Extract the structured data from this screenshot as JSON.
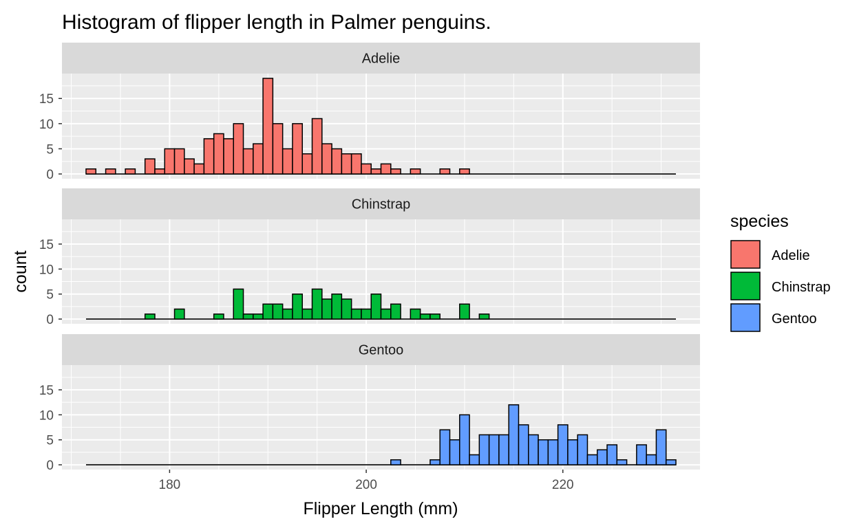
{
  "chart_data": {
    "type": "bar",
    "title": "Histogram of flipper length in Palmer penguins.",
    "xlabel": "Flipper Length (mm)",
    "ylabel": "count",
    "xlim": [
      169.05,
      233.95
    ],
    "ylim": [
      -0.95,
      19.95
    ],
    "x_ticks": [
      180,
      200,
      220
    ],
    "y_ticks": [
      0,
      5,
      10,
      15
    ],
    "bin_width": 1,
    "x_range": [
      172,
      231
    ],
    "grid": true,
    "legend": {
      "title": "species",
      "position": "right"
    },
    "series": [
      {
        "name": "Adelie",
        "color": "#F8766D",
        "x": [
          172,
          174,
          176,
          178,
          179,
          180,
          181,
          182,
          183,
          184,
          185,
          186,
          187,
          188,
          189,
          190,
          191,
          192,
          193,
          194,
          195,
          196,
          197,
          198,
          199,
          200,
          201,
          202,
          203,
          205,
          208,
          210
        ],
        "values": [
          1,
          1,
          1,
          3,
          1,
          5,
          5,
          3,
          2,
          7,
          8,
          7,
          10,
          5,
          6,
          19,
          10,
          5,
          10,
          4,
          11,
          6,
          5,
          4,
          4,
          2,
          1,
          2,
          1,
          1,
          1,
          1
        ]
      },
      {
        "name": "Chinstrap",
        "color": "#00BA38",
        "x": [
          178,
          181,
          185,
          187,
          188,
          189,
          190,
          191,
          192,
          193,
          194,
          195,
          196,
          197,
          198,
          199,
          200,
          201,
          202,
          203,
          205,
          206,
          207,
          210,
          212
        ],
        "values": [
          1,
          2,
          1,
          6,
          1,
          1,
          3,
          3,
          2,
          5,
          2,
          6,
          4,
          5,
          4,
          2,
          2,
          5,
          2,
          3,
          2,
          1,
          1,
          3,
          1
        ]
      },
      {
        "name": "Gentoo",
        "color": "#619CFF",
        "x": [
          203,
          207,
          208,
          209,
          210,
          211,
          212,
          213,
          214,
          215,
          216,
          217,
          218,
          219,
          220,
          221,
          222,
          223,
          224,
          225,
          226,
          228,
          229,
          230,
          231
        ],
        "values": [
          1,
          1,
          7,
          5,
          10,
          2,
          6,
          6,
          6,
          12,
          8,
          6,
          5,
          5,
          8,
          5,
          6,
          2,
          3,
          4,
          1,
          4,
          2,
          7,
          1
        ]
      }
    ]
  }
}
